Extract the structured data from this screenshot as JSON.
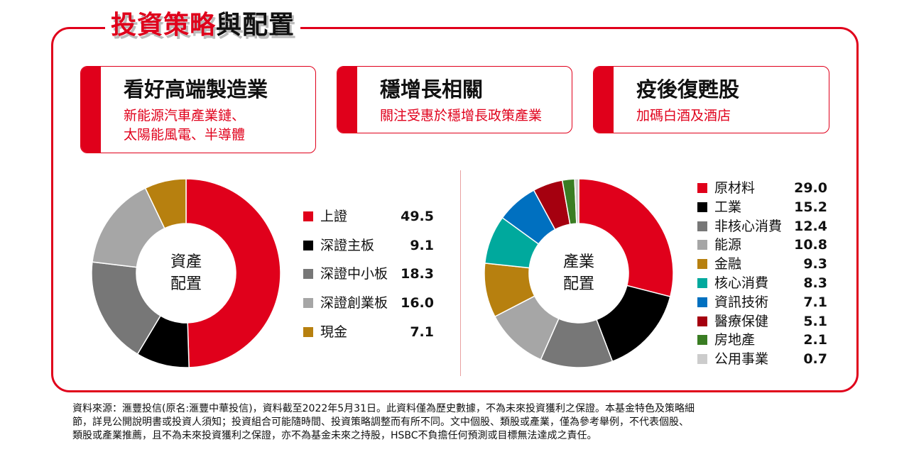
{
  "title": {
    "red": "投資策略",
    "black": "與配置"
  },
  "cards": [
    {
      "heading": "看好高端製造業",
      "lines": [
        "新能源汽車產業鏈、",
        "太陽能風電、半導體"
      ]
    },
    {
      "heading": "穩增長相關",
      "lines": [
        "關注受惠於穩增長政策產業"
      ]
    },
    {
      "heading": "疫後復甦股",
      "lines": [
        "加碼白酒及酒店"
      ]
    }
  ],
  "chart_data": [
    {
      "type": "pie",
      "donut": true,
      "center_label": [
        "資產",
        "配置"
      ],
      "legend_placement": "right",
      "categories": [
        "上證",
        "深證主板",
        "深證中小板",
        "深證創業板",
        "現金"
      ],
      "values": [
        49.5,
        9.1,
        18.3,
        16.0,
        7.1
      ],
      "colors": [
        "#e0001b",
        "#000000",
        "#777777",
        "#a6a6a6",
        "#b7800f"
      ]
    },
    {
      "type": "pie",
      "donut": true,
      "center_label": [
        "產業",
        "配置"
      ],
      "legend_placement": "right",
      "categories": [
        "原材料",
        "工業",
        "非核心消費",
        "能源",
        "金融",
        "核心消費",
        "資訊技術",
        "醫療保健",
        "房地產",
        "公用事業"
      ],
      "values": [
        29.0,
        15.2,
        12.4,
        10.8,
        9.3,
        8.3,
        7.1,
        5.1,
        2.1,
        0.7
      ],
      "colors": [
        "#e0001b",
        "#000000",
        "#777777",
        "#a6a6a6",
        "#b7800f",
        "#00a99d",
        "#0070c0",
        "#a5000f",
        "#3a7d23",
        "#cccccc"
      ]
    }
  ],
  "footnote": [
    "資料來源：滙豐投信(原名:滙豐中華投信)，資料截至2022年5月31日。此資料僅為歷史數據，不為未來投資獲利之保證。本基金特色及策略細",
    "節，詳見公開說明書或投資人須知；投資組合可能隨時間、投資策略調整而有所不同。文中個股、類股或產業，僅為參考舉例，不代表個股、",
    "類股或產業推薦，且不為未來投資獲利之保證，亦不為基金未來之持股，HSBC不負擔任何預測或目標無法達成之責任。"
  ]
}
